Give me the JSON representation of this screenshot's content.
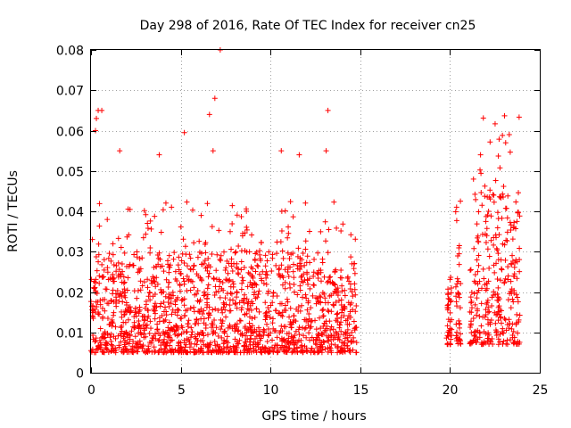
{
  "chart_data": {
    "type": "scatter",
    "title": "Day 298 of 2016, Rate Of TEC Index for receiver cn25",
    "xlabel": "GPS time / hours",
    "ylabel": "ROTI / TECUs",
    "xlim": [
      0,
      25
    ],
    "ylim": [
      0,
      0.08
    ],
    "grid": true,
    "marker": "+",
    "color": "#ff0000",
    "x_ticks": [
      0,
      5,
      10,
      15,
      20,
      25
    ],
    "x_tick_labels": [
      "0",
      "5",
      "10",
      "15",
      "20",
      "25"
    ],
    "y_ticks": [
      0,
      0.01,
      0.02,
      0.03,
      0.04,
      0.05,
      0.06,
      0.07,
      0.08
    ],
    "y_tick_labels": [
      "0",
      "0.01",
      "0.02",
      "0.03",
      "0.04",
      "0.05",
      "0.06",
      "0.07",
      "0.08"
    ],
    "segments": [
      {
        "x_start": 0.0,
        "x_end": 14.8,
        "typical_range": [
          0.005,
          0.03
        ]
      },
      {
        "x_start": 19.8,
        "x_end": 20.1,
        "typical_range": [
          0.007,
          0.024
        ]
      },
      {
        "x_start": 20.3,
        "x_end": 20.6,
        "typical_range": [
          0.007,
          0.033
        ]
      },
      {
        "x_start": 21.1,
        "x_end": 23.9,
        "typical_range": [
          0.007,
          0.045
        ]
      }
    ],
    "notable_points": [
      {
        "x": 7.2,
        "y": 0.08
      },
      {
        "x": 6.9,
        "y": 0.068
      },
      {
        "x": 13.2,
        "y": 0.065
      },
      {
        "x": 0.4,
        "y": 0.065
      },
      {
        "x": 0.6,
        "y": 0.065
      },
      {
        "x": 0.3,
        "y": 0.063
      },
      {
        "x": 6.6,
        "y": 0.064
      },
      {
        "x": 5.2,
        "y": 0.0595
      },
      {
        "x": 23.3,
        "y": 0.059
      },
      {
        "x": 23.1,
        "y": 0.057
      },
      {
        "x": 13.1,
        "y": 0.055
      },
      {
        "x": 11.6,
        "y": 0.054
      },
      {
        "x": 10.6,
        "y": 0.055
      },
      {
        "x": 21.7,
        "y": 0.054
      },
      {
        "x": 1.6,
        "y": 0.055
      },
      {
        "x": 3.8,
        "y": 0.054
      },
      {
        "x": 6.8,
        "y": 0.055
      },
      {
        "x": 0.25,
        "y": 0.06
      }
    ]
  }
}
